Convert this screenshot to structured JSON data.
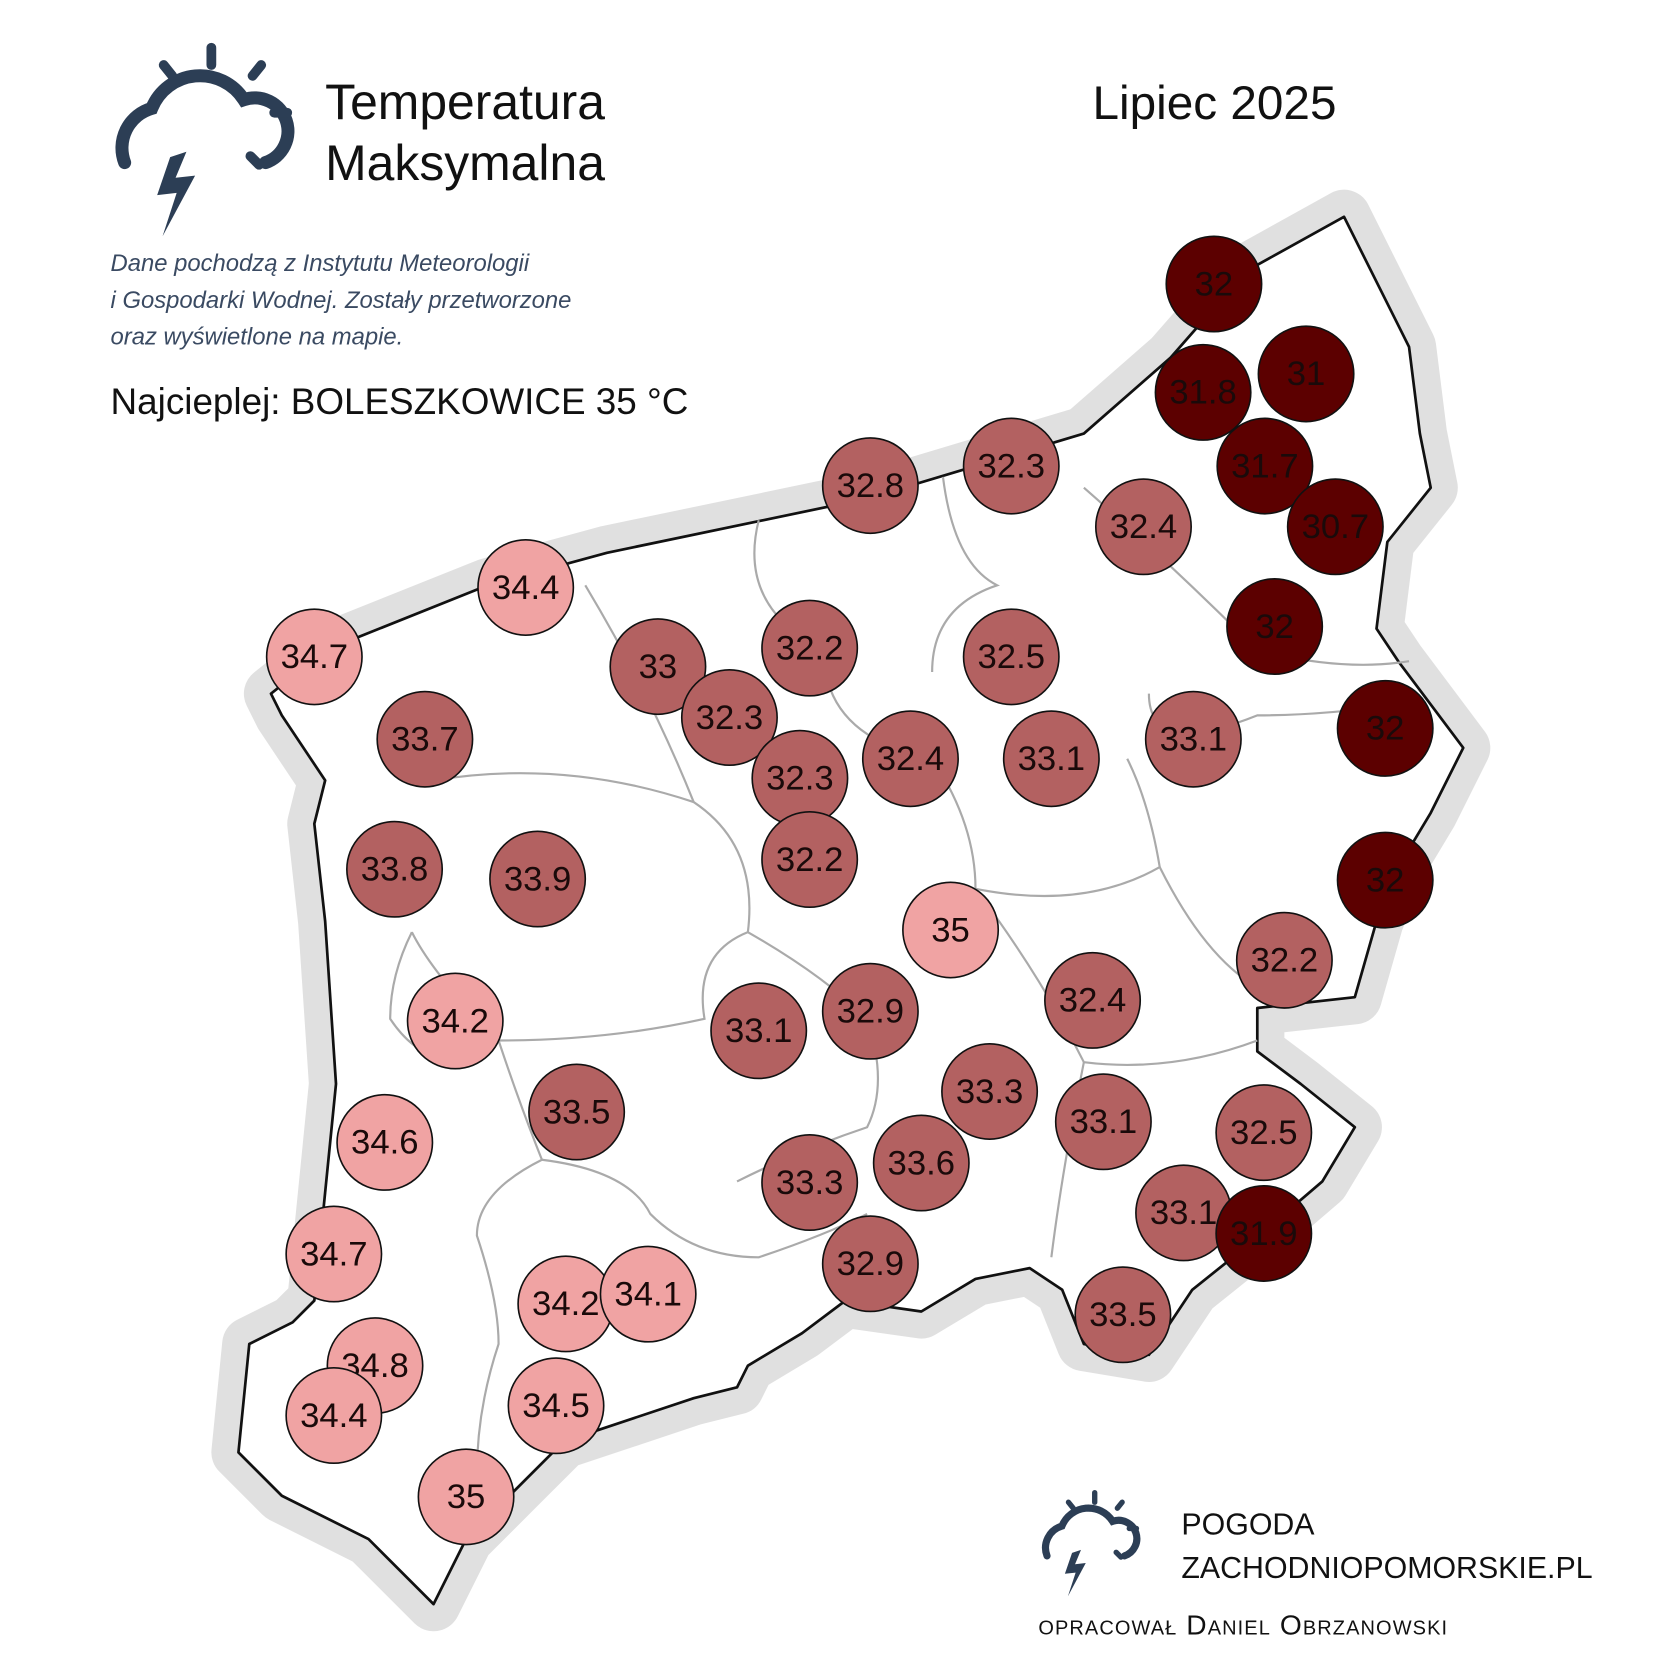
{
  "header": {
    "title_lines": [
      "Temperatura",
      "Maksymalna"
    ],
    "period": "Lipiec 2025",
    "description_lines": [
      "Dane pochodzą z Instytutu Meteorologii",
      "i Gospodarki Wodnej. Zostały przetworzone",
      "oraz wyświetlone na mapie."
    ],
    "hottest": "Najcieplej: BOLESZKOWICE 35 °C"
  },
  "footer": {
    "brand_lines": [
      "POGODA",
      "ZACHODNIOPOMORSKIE.PL"
    ],
    "author": "opracował Daniel Obrzanowski"
  },
  "markers": [
    {
      "value": 32,
      "color": "#5c0000"
    },
    {
      "value": 31,
      "color": "#5c0000"
    },
    {
      "value": 31.8,
      "color": "#5c0000"
    },
    {
      "value": 31.7,
      "color": "#5c0000"
    },
    {
      "value": 30.7,
      "color": "#5c0000"
    },
    {
      "value": 32.3,
      "color": "#b36161"
    },
    {
      "value": 32.8,
      "color": "#b36161"
    },
    {
      "value": 32.4,
      "color": "#b36161"
    },
    {
      "value": 34.4,
      "color": "#f0a3a3"
    },
    {
      "value": 34.7,
      "color": "#f0a3a3"
    },
    {
      "value": 33,
      "color": "#b36161"
    },
    {
      "value": 32.2,
      "color": "#b36161"
    },
    {
      "value": 32.5,
      "color": "#b36161"
    },
    {
      "value": 32,
      "color": "#5c0000"
    },
    {
      "value": 32.3,
      "color": "#b36161"
    },
    {
      "value": 33.7,
      "color": "#b36161"
    },
    {
      "value": 32.4,
      "color": "#b36161"
    },
    {
      "value": 33.1,
      "color": "#b36161"
    },
    {
      "value": 33.1,
      "color": "#b36161"
    },
    {
      "value": 32,
      "color": "#5c0000"
    },
    {
      "value": 32.3,
      "color": "#b36161"
    },
    {
      "value": 33.8,
      "color": "#b36161"
    },
    {
      "value": 33.9,
      "color": "#b36161"
    },
    {
      "value": 32.2,
      "color": "#b36161"
    },
    {
      "value": 32,
      "color": "#5c0000"
    },
    {
      "value": 35,
      "color": "#f0a3a3"
    },
    {
      "value": 32.2,
      "color": "#b36161"
    },
    {
      "value": 34.2,
      "color": "#f0a3a3"
    },
    {
      "value": 33.1,
      "color": "#b36161"
    },
    {
      "value": 32.9,
      "color": "#b36161"
    },
    {
      "value": 32.4,
      "color": "#b36161"
    },
    {
      "value": 33.3,
      "color": "#b36161"
    },
    {
      "value": 33.5,
      "color": "#b36161"
    },
    {
      "value": 33.1,
      "color": "#b36161"
    },
    {
      "value": 32.5,
      "color": "#b36161"
    },
    {
      "value": 34.6,
      "color": "#f0a3a3"
    },
    {
      "value": 33.6,
      "color": "#b36161"
    },
    {
      "value": 33.3,
      "color": "#b36161"
    },
    {
      "value": 33.1,
      "color": "#b36161"
    },
    {
      "value": 31.9,
      "color": "#5c0000"
    },
    {
      "value": 34.7,
      "color": "#f0a3a3"
    },
    {
      "value": 32.9,
      "color": "#b36161"
    },
    {
      "value": 34.2,
      "color": "#f0a3a3"
    },
    {
      "value": 34.1,
      "color": "#f0a3a3"
    },
    {
      "value": 33.5,
      "color": "#b36161"
    },
    {
      "value": 34.8,
      "color": "#f0a3a3"
    },
    {
      "value": 34.4,
      "color": "#f0a3a3"
    },
    {
      "value": 34.5,
      "color": "#f0a3a3"
    },
    {
      "value": 35,
      "color": "#f0a3a3"
    }
  ]
}
